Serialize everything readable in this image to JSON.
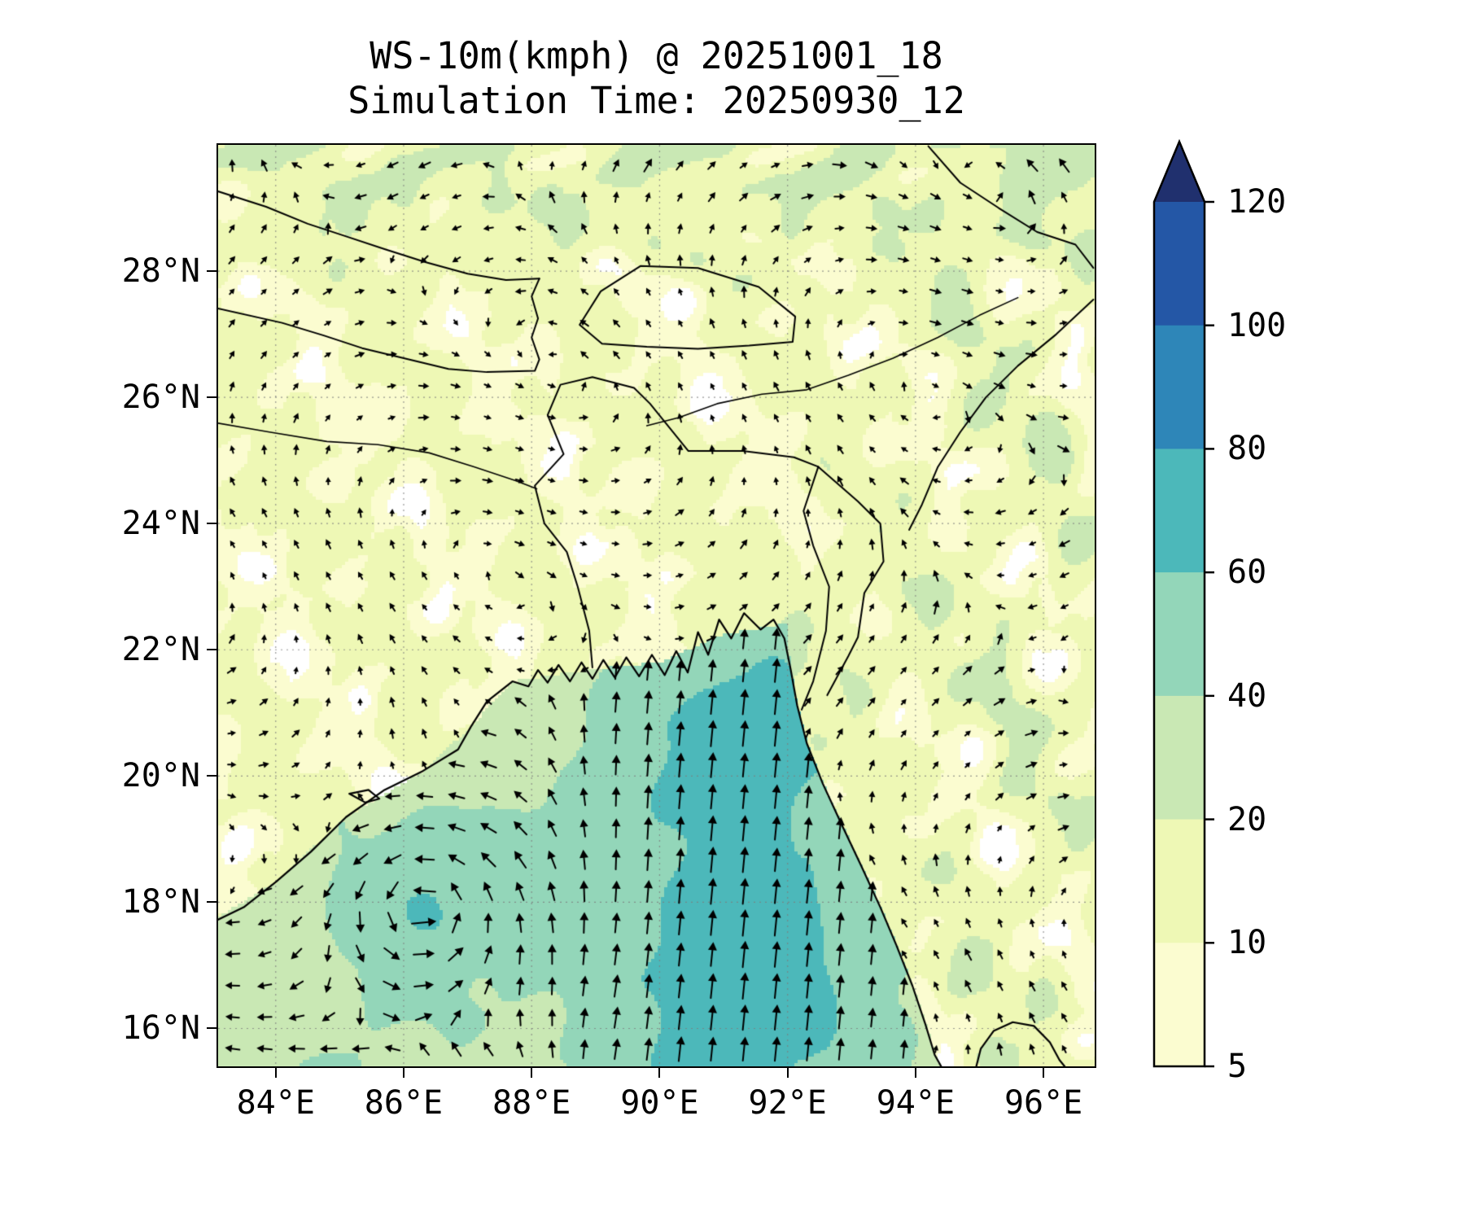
{
  "title": "WS-10m(kmph) @ 20251001_18",
  "subtitle": "Simulation Time: 20250930_12",
  "chart_data": {
    "type": "heatmap",
    "subtype": "wind_speed_filled_contour_with_quiver",
    "title": "WS-10m(kmph) @ 20251001_18",
    "subtitle": "Simulation Time: 20250930_12",
    "variable": "WS-10m",
    "units": "kmph",
    "valid_time": "20251001_18",
    "simulation_time": "20250930_12",
    "x_tick_values": [
      84,
      86,
      88,
      90,
      92,
      94,
      96
    ],
    "x_tick_labels": [
      "84°E",
      "86°E",
      "88°E",
      "90°E",
      "92°E",
      "94°E",
      "96°E"
    ],
    "y_tick_values": [
      16,
      18,
      20,
      22,
      24,
      26,
      28
    ],
    "y_tick_labels": [
      "16°N",
      "18°N",
      "20°N",
      "22°N",
      "24°N",
      "26°N",
      "28°N"
    ],
    "lon_range": [
      83.1,
      96.8
    ],
    "lat_range": [
      15.4,
      30.0
    ],
    "gridlines": "dotted 2-degree graticule",
    "colorbar": {
      "orientation": "vertical",
      "extend": "max",
      "levels": [
        5,
        10,
        20,
        40,
        60,
        80,
        100,
        120
      ],
      "tick_labels": [
        "5",
        "10",
        "20",
        "40",
        "60",
        "80",
        "100",
        "120"
      ],
      "interval_colors": [
        "#fbfcd0",
        "#eef8b5",
        "#c9e8b4",
        "#93d6b9",
        "#4cb8ba",
        "#2e86b8",
        "#2457a6"
      ],
      "extend_above_color": "#20306e",
      "below_min_color": "#ffffff"
    },
    "features": {
      "cyclone_center": {
        "lon": 86.3,
        "lat": 17.9
      },
      "peak_band_kmph": [
        60,
        80
      ],
      "peak_region": "eastern Bay of Bengal and ring around cyclone center",
      "circulation": "counterclockwise quiver arrows around cyclone; southerly flow over eastern Bay of Bengal; weak variable winds over land"
    }
  }
}
